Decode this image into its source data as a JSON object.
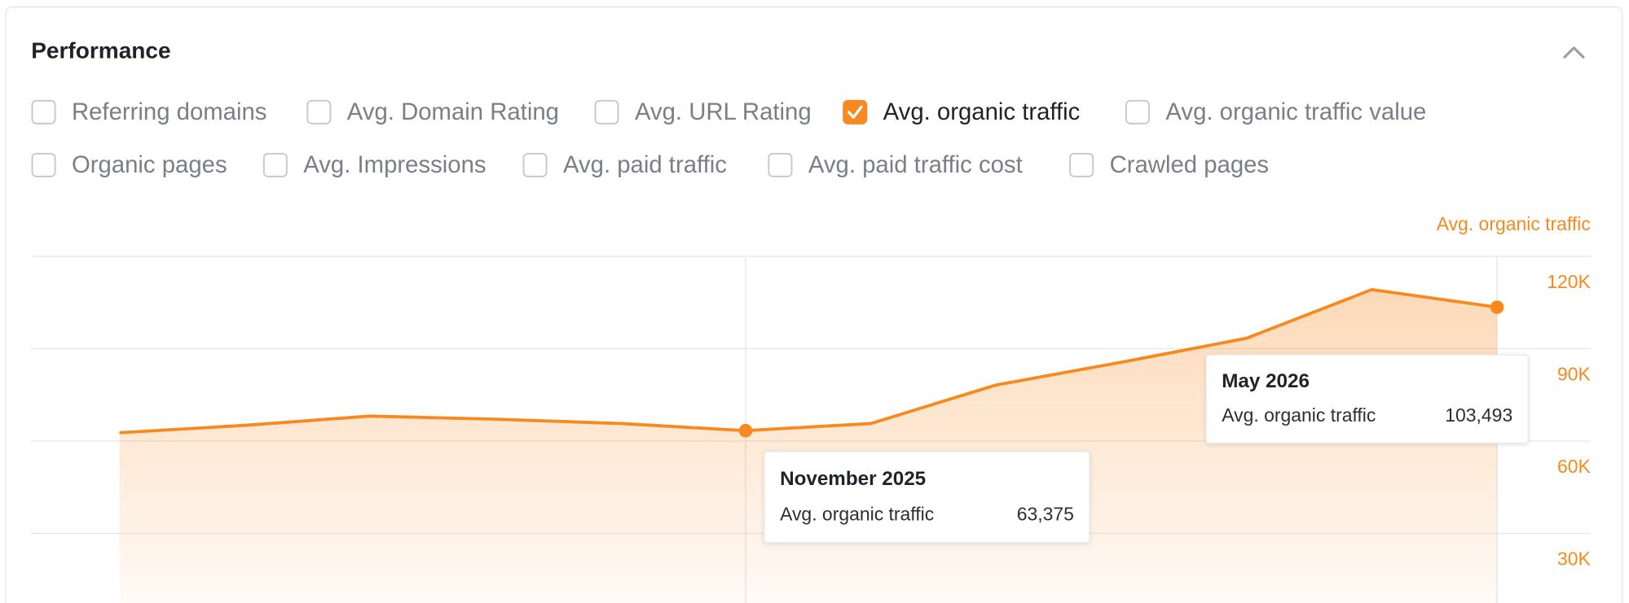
{
  "header": {
    "title": "Performance"
  },
  "metrics": [
    {
      "label": "Referring domains",
      "checked": false
    },
    {
      "label": "Avg. Domain Rating",
      "checked": false
    },
    {
      "label": "Avg. URL Rating",
      "checked": false
    },
    {
      "label": "Avg. organic traffic",
      "checked": true
    },
    {
      "label": "Avg. organic traffic value",
      "checked": false
    },
    {
      "label": "Organic pages",
      "checked": false
    },
    {
      "label": "Avg. Impressions",
      "checked": false
    },
    {
      "label": "Avg. paid traffic",
      "checked": false
    },
    {
      "label": "Avg. paid traffic cost",
      "checked": false
    },
    {
      "label": "Crawled pages",
      "checked": false
    }
  ],
  "chart_data": {
    "type": "area",
    "categories": [
      null,
      null,
      null,
      null,
      null,
      null,
      null,
      null,
      null,
      null,
      null,
      null
    ],
    "series": [
      {
        "name": "Avg. organic traffic",
        "color": "#f7891f",
        "values": [
          62700,
          65100,
          68100,
          67100,
          65700,
          63375,
          65700,
          78200,
          85600,
          93400,
          109200,
          103493
        ]
      }
    ],
    "ylim": [
      0,
      120000
    ],
    "yticks": [
      {
        "value": 30000,
        "label": "30K"
      },
      {
        "value": 60000,
        "label": "60K"
      },
      {
        "value": 90000,
        "label": "90K"
      },
      {
        "value": 120000,
        "label": "120K"
      }
    ],
    "grid": true,
    "axis_side": "right",
    "tooltips": [
      {
        "title": "November 2025",
        "value": 63375,
        "value_label": "63,375"
      },
      {
        "title": "May 2026",
        "value": 103493,
        "value_label": "103,493"
      }
    ]
  }
}
